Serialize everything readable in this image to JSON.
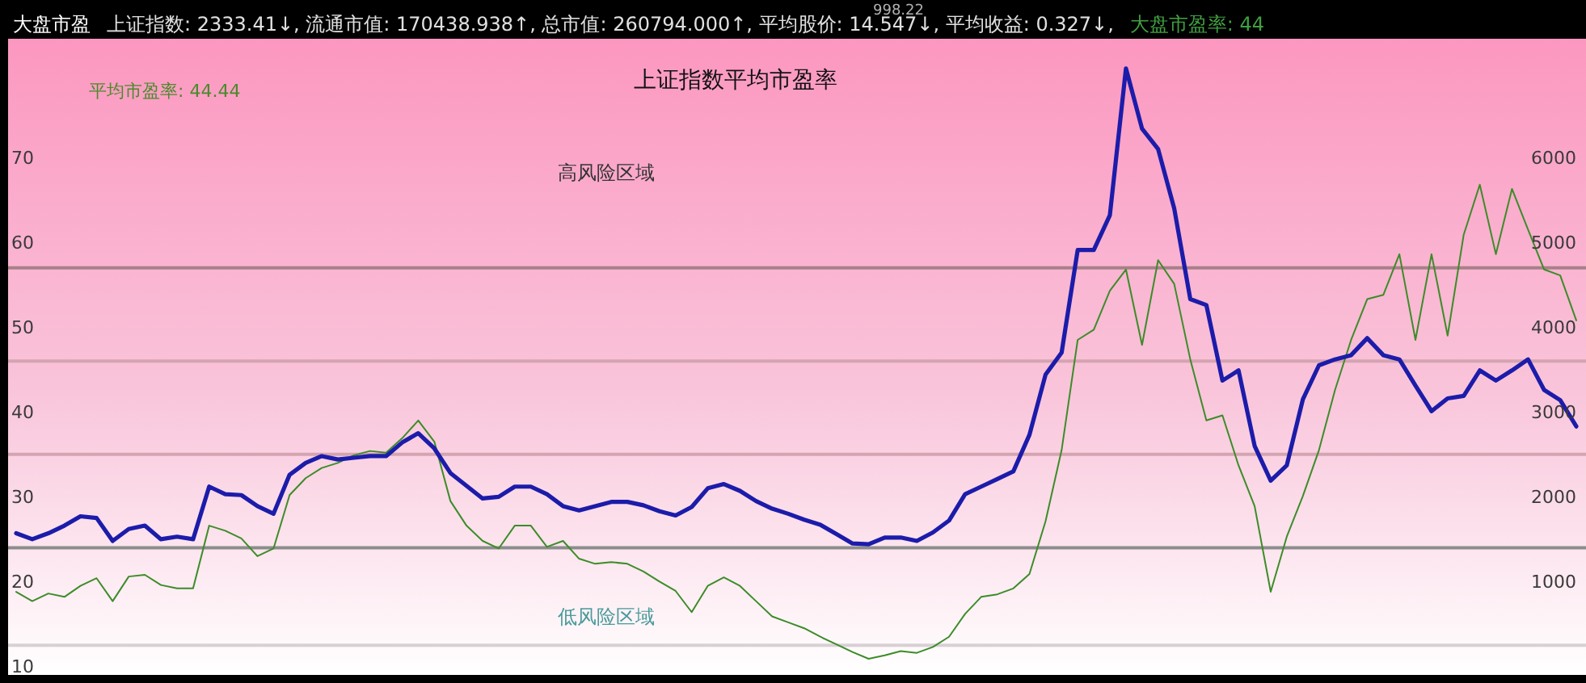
{
  "chart_data": {
    "type": "line",
    "title": "上证指数平均市盈率",
    "annotations": [
      "大盘市盈",
      "上证指数: 2333.41↓, 流通市值: 170438.938↑, 总市值: 260794.000↑, 平均股价: 14.547↓, 平均收益: 0.327↓,",
      "大盘市盈率: 44",
      "998.22",
      "平均市盈率: 44.44",
      "高风险区域",
      "低风险区域"
    ],
    "categories": [
      null,
      null,
      null,
      null,
      null,
      null,
      null,
      null,
      null,
      null,
      null,
      null,
      null,
      null,
      null,
      null,
      null,
      null,
      null,
      null,
      null,
      null,
      null,
      null,
      null,
      null,
      null,
      null,
      null,
      null,
      null,
      null,
      null,
      null,
      null,
      null,
      null,
      null,
      null,
      null,
      null,
      null,
      null,
      null,
      null,
      null,
      null,
      null,
      null,
      null,
      null,
      null,
      null,
      null,
      null,
      null,
      null,
      null,
      null,
      null,
      null,
      null,
      null,
      null,
      null,
      null,
      null,
      null,
      null,
      null,
      null,
      null,
      null,
      null,
      null,
      null,
      null,
      null,
      null,
      null,
      null,
      null,
      null,
      null,
      null,
      null,
      null,
      null,
      null,
      null,
      null,
      null,
      null,
      null,
      null,
      null,
      null,
      null
    ],
    "ylim": [
      9,
      84
    ],
    "yticks": [
      10,
      20,
      30,
      40,
      50,
      60,
      70
    ],
    "y2lim": [
      -100,
      7400
    ],
    "y2ticks": [
      1000,
      2000,
      3000,
      4000,
      5000,
      6000
    ],
    "tick_labels": "y",
    "ref_lines": [
      {
        "axis": "y",
        "value": 57,
        "color": "#a88088"
      },
      {
        "axis": "y",
        "value": 46,
        "color": "#d4a4b0"
      },
      {
        "axis": "y",
        "value": 35,
        "color": "#d4a4b0"
      },
      {
        "axis": "y",
        "value": 24,
        "color": "#8c8c8c"
      },
      {
        "axis": "y",
        "value": 12.5,
        "color": "#d8d0d4"
      }
    ],
    "series": [
      {
        "color": "#3c8c28",
        "values": [
          18.8,
          17.7,
          18.6,
          18.2,
          19.5,
          20.4,
          17.7,
          20.6,
          20.8,
          19.6,
          19.2,
          19.2,
          26.6,
          26.0,
          25.1,
          23.0,
          23.9,
          30.2,
          32.2,
          33.4,
          34.0,
          34.9,
          35.4,
          35.2,
          36.9,
          39.0,
          36.5,
          29.5,
          26.6,
          24.8,
          23.9,
          26.6,
          26.6,
          24.1,
          24.8,
          22.7,
          22.1,
          22.3,
          22.1,
          21.2,
          20.0,
          18.9,
          16.4,
          19.5,
          20.5,
          19.5,
          17.7,
          15.9,
          15.2,
          14.5,
          13.5,
          12.6,
          11.7,
          10.9,
          11.3,
          11.8,
          11.6,
          12.3,
          13.5,
          16.2,
          18.2,
          18.5,
          19.2,
          20.9,
          27.1,
          35.5,
          48.5,
          49.7,
          54.3,
          56.8,
          47.9,
          57.9,
          55.1,
          46.2,
          39.0,
          39.6,
          33.7,
          28.9,
          18.8,
          25.3,
          30.1,
          35.5,
          42.6,
          48.5,
          53.3,
          53.8,
          58.6,
          48.5,
          58.6,
          49.0,
          60.9,
          66.8,
          58.6,
          66.3,
          61.5,
          56.8,
          56.1,
          50.8
        ]
      },
      {
        "color": "#1c1caa",
        "axis": "y2",
        "values": [
          1570,
          1500,
          1570,
          1660,
          1770,
          1750,
          1480,
          1620,
          1660,
          1500,
          1530,
          1500,
          2120,
          2030,
          2020,
          1890,
          1800,
          2260,
          2400,
          2480,
          2440,
          2460,
          2480,
          2480,
          2640,
          2750,
          2570,
          2280,
          2130,
          1980,
          2000,
          2120,
          2120,
          2030,
          1890,
          1840,
          1890,
          1940,
          1940,
          1900,
          1830,
          1780,
          1880,
          2100,
          2150,
          2070,
          1950,
          1860,
          1800,
          1730,
          1670,
          1560,
          1450,
          1440,
          1520,
          1520,
          1480,
          1580,
          1720,
          2030,
          2120,
          2210,
          2300,
          2730,
          3440,
          3700,
          4910,
          4910,
          5320,
          7050,
          6340,
          6100,
          5400,
          4330,
          4260,
          3370,
          3490,
          2600,
          2190,
          2370,
          3150,
          3550,
          3620,
          3670,
          3870,
          3670,
          3620,
          3310,
          3010,
          3160,
          3190,
          3490,
          3370,
          3490,
          3620,
          3260,
          3140,
          2830
        ]
      }
    ]
  }
}
